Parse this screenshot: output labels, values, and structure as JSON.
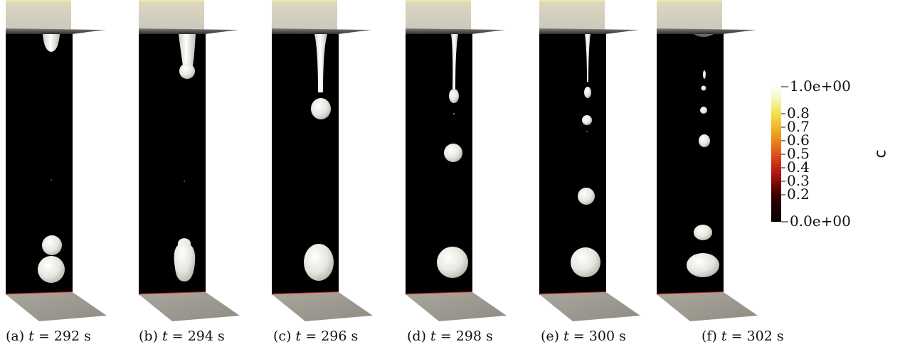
{
  "panels": [
    {
      "letter": "(a)",
      "var": "t",
      "eq": " = ",
      "value": "292",
      "unit": " s"
    },
    {
      "letter": "(b)",
      "var": "t",
      "eq": " = ",
      "value": "294",
      "unit": " s"
    },
    {
      "letter": "(c)",
      "var": "t",
      "eq": " = ",
      "value": "296",
      "unit": " s"
    },
    {
      "letter": "(d)",
      "var": "t",
      "eq": " = ",
      "value": "298",
      "unit": " s"
    },
    {
      "letter": "(e)",
      "var": "t",
      "eq": " = ",
      "value": "300",
      "unit": " s"
    },
    {
      "letter": "(f)",
      "var": "t",
      "eq": " = ",
      "value": "302",
      "unit": " s"
    }
  ],
  "colorbar": {
    "title": "c",
    "max_label": "1.0e+00",
    "min_label": "0.0e+00",
    "ticks": [
      "0.8",
      "0.7",
      "0.6",
      "0.5",
      "0.4",
      "0.3",
      "0.2"
    ],
    "colors": [
      "#000000",
      "#5a0000",
      "#c81414",
      "#e66b0a",
      "#f2c21a",
      "#f5f09a",
      "#ffffff"
    ]
  }
}
